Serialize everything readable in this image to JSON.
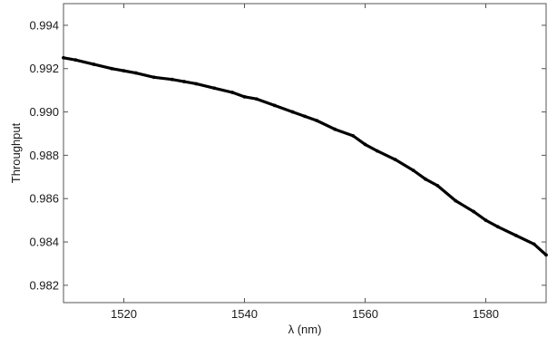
{
  "chart_data": {
    "type": "scatter",
    "title": "",
    "xlabel": "λ (nm)",
    "ylabel": "Throughput",
    "xlim": [
      1510,
      1590
    ],
    "ylim": [
      0.9812,
      0.995
    ],
    "xticks": [
      1520,
      1540,
      1560,
      1580
    ],
    "yticks": [
      0.982,
      0.984,
      0.986,
      0.988,
      0.99,
      0.992,
      0.994
    ],
    "xtick_labels": [
      "1520",
      "1540",
      "1560",
      "1580"
    ],
    "ytick_labels": [
      "0.982",
      "0.984",
      "0.986",
      "0.988",
      "0.990",
      "0.992",
      "0.994"
    ],
    "grid": false,
    "series": [
      {
        "color": "#000000",
        "x": [
          1510,
          1512,
          1515,
          1518,
          1520,
          1522,
          1525,
          1528,
          1530,
          1532,
          1535,
          1538,
          1540,
          1542,
          1545,
          1548,
          1550,
          1552,
          1555,
          1558,
          1560,
          1562,
          1565,
          1568,
          1570,
          1572,
          1575,
          1578,
          1580,
          1582,
          1585,
          1588,
          1590
        ],
        "y": [
          0.9925,
          0.9924,
          0.9922,
          0.992,
          0.9919,
          0.9918,
          0.9916,
          0.9915,
          0.9914,
          0.9913,
          0.9911,
          0.9909,
          0.9907,
          0.9906,
          0.9903,
          0.99,
          0.9898,
          0.9896,
          0.9892,
          0.9889,
          0.9885,
          0.9882,
          0.9878,
          0.9873,
          0.9869,
          0.9866,
          0.9859,
          0.9854,
          0.985,
          0.9847,
          0.9843,
          0.9839,
          0.9834
        ]
      }
    ]
  }
}
